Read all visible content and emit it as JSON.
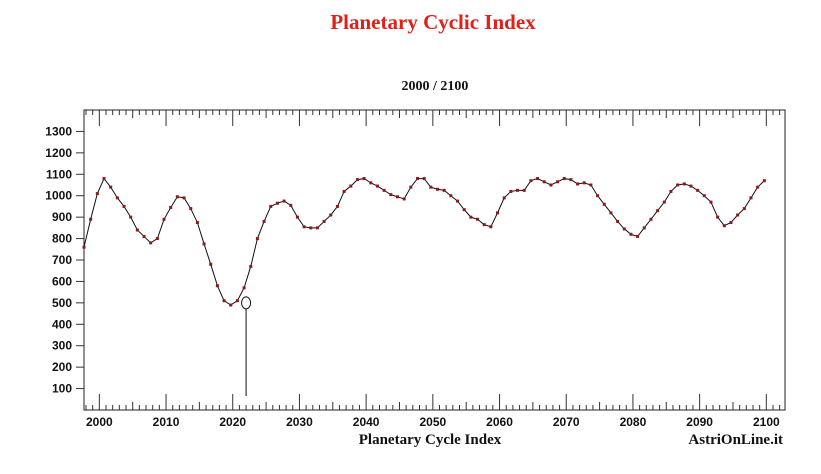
{
  "chart_data": {
    "type": "line",
    "title": "Planetary Cyclic Index",
    "subtitle": "2000  /  2100",
    "xlabel": "Planetary Cycle Index",
    "credit": "AstriOnLine.it",
    "xlim": [
      1997.7,
      2102.8
    ],
    "ylim": [
      0,
      1400
    ],
    "yticks": [
      100,
      200,
      300,
      400,
      500,
      600,
      700,
      800,
      900,
      1000,
      1100,
      1200,
      1300
    ],
    "xtick_labels": [
      {
        "x": 2000,
        "label": "2000"
      },
      {
        "x": 2010,
        "label": "2010"
      },
      {
        "x": 2020,
        "label": "2020"
      },
      {
        "x": 2030,
        "label": "2030"
      },
      {
        "x": 2040,
        "label": "2040"
      },
      {
        "x": 2050,
        "label": "2050"
      },
      {
        "x": 2060,
        "label": "2060"
      },
      {
        "x": 2070,
        "label": "2070"
      },
      {
        "x": 2080,
        "label": "2080"
      },
      {
        "x": 2090,
        "label": "2090"
      },
      {
        "x": 2100,
        "label": "2100"
      }
    ],
    "line_color": "#111111",
    "marker_color": "#8b1a1a",
    "highlight": {
      "x": 2022,
      "y": 500
    },
    "series": [
      {
        "points": [
          [
            1997.7,
            760
          ],
          [
            1998.7,
            890
          ],
          [
            1999.7,
            1010
          ],
          [
            2000.7,
            1080
          ],
          [
            2001.7,
            1040
          ],
          [
            2002.7,
            990
          ],
          [
            2003.7,
            950
          ],
          [
            2004.7,
            900
          ],
          [
            2005.7,
            840
          ],
          [
            2006.7,
            810
          ],
          [
            2007.7,
            780
          ],
          [
            2008.7,
            800
          ],
          [
            2009.7,
            890
          ],
          [
            2010.7,
            945
          ],
          [
            2011.7,
            995
          ],
          [
            2012.7,
            990
          ],
          [
            2013.7,
            940
          ],
          [
            2014.7,
            875
          ],
          [
            2015.7,
            775
          ],
          [
            2016.7,
            680
          ],
          [
            2017.7,
            580
          ],
          [
            2018.7,
            510
          ],
          [
            2019.7,
            490
          ],
          [
            2020.7,
            510
          ],
          [
            2021.7,
            570
          ],
          [
            2022.7,
            670
          ],
          [
            2023.7,
            800
          ],
          [
            2024.7,
            880
          ],
          [
            2025.7,
            950
          ],
          [
            2026.7,
            965
          ],
          [
            2027.7,
            975
          ],
          [
            2028.7,
            955
          ],
          [
            2029.7,
            900
          ],
          [
            2030.7,
            855
          ],
          [
            2031.7,
            850
          ],
          [
            2032.7,
            850
          ],
          [
            2033.7,
            880
          ],
          [
            2034.7,
            910
          ],
          [
            2035.7,
            950
          ],
          [
            2036.7,
            1020
          ],
          [
            2037.7,
            1045
          ],
          [
            2038.7,
            1075
          ],
          [
            2039.7,
            1080
          ],
          [
            2040.7,
            1060
          ],
          [
            2041.7,
            1045
          ],
          [
            2042.7,
            1025
          ],
          [
            2043.7,
            1005
          ],
          [
            2044.7,
            995
          ],
          [
            2045.7,
            985
          ],
          [
            2046.7,
            1040
          ],
          [
            2047.7,
            1080
          ],
          [
            2048.7,
            1080
          ],
          [
            2049.7,
            1040
          ],
          [
            2050.7,
            1030
          ],
          [
            2051.7,
            1025
          ],
          [
            2052.7,
            1000
          ],
          [
            2053.7,
            975
          ],
          [
            2054.7,
            935
          ],
          [
            2055.7,
            900
          ],
          [
            2056.7,
            890
          ],
          [
            2057.7,
            865
          ],
          [
            2058.7,
            855
          ],
          [
            2059.7,
            920
          ],
          [
            2060.7,
            990
          ],
          [
            2061.7,
            1020
          ],
          [
            2062.7,
            1025
          ],
          [
            2063.7,
            1025
          ],
          [
            2064.7,
            1070
          ],
          [
            2065.7,
            1080
          ],
          [
            2066.7,
            1065
          ],
          [
            2067.7,
            1050
          ],
          [
            2068.7,
            1065
          ],
          [
            2069.7,
            1080
          ],
          [
            2070.7,
            1075
          ],
          [
            2071.7,
            1055
          ],
          [
            2072.7,
            1060
          ],
          [
            2073.7,
            1050
          ],
          [
            2074.7,
            1000
          ],
          [
            2075.7,
            960
          ],
          [
            2076.7,
            920
          ],
          [
            2077.7,
            880
          ],
          [
            2078.7,
            845
          ],
          [
            2079.7,
            820
          ],
          [
            2080.7,
            810
          ],
          [
            2081.7,
            850
          ],
          [
            2082.7,
            890
          ],
          [
            2083.7,
            930
          ],
          [
            2084.7,
            970
          ],
          [
            2085.7,
            1020
          ],
          [
            2086.7,
            1050
          ],
          [
            2087.7,
            1055
          ],
          [
            2088.7,
            1045
          ],
          [
            2089.7,
            1025
          ],
          [
            2090.7,
            1000
          ],
          [
            2091.7,
            970
          ],
          [
            2092.7,
            900
          ],
          [
            2093.7,
            860
          ],
          [
            2094.7,
            875
          ],
          [
            2095.7,
            910
          ],
          [
            2096.7,
            940
          ],
          [
            2097.7,
            990
          ],
          [
            2098.7,
            1040
          ],
          [
            2099.7,
            1070
          ]
        ]
      }
    ]
  }
}
